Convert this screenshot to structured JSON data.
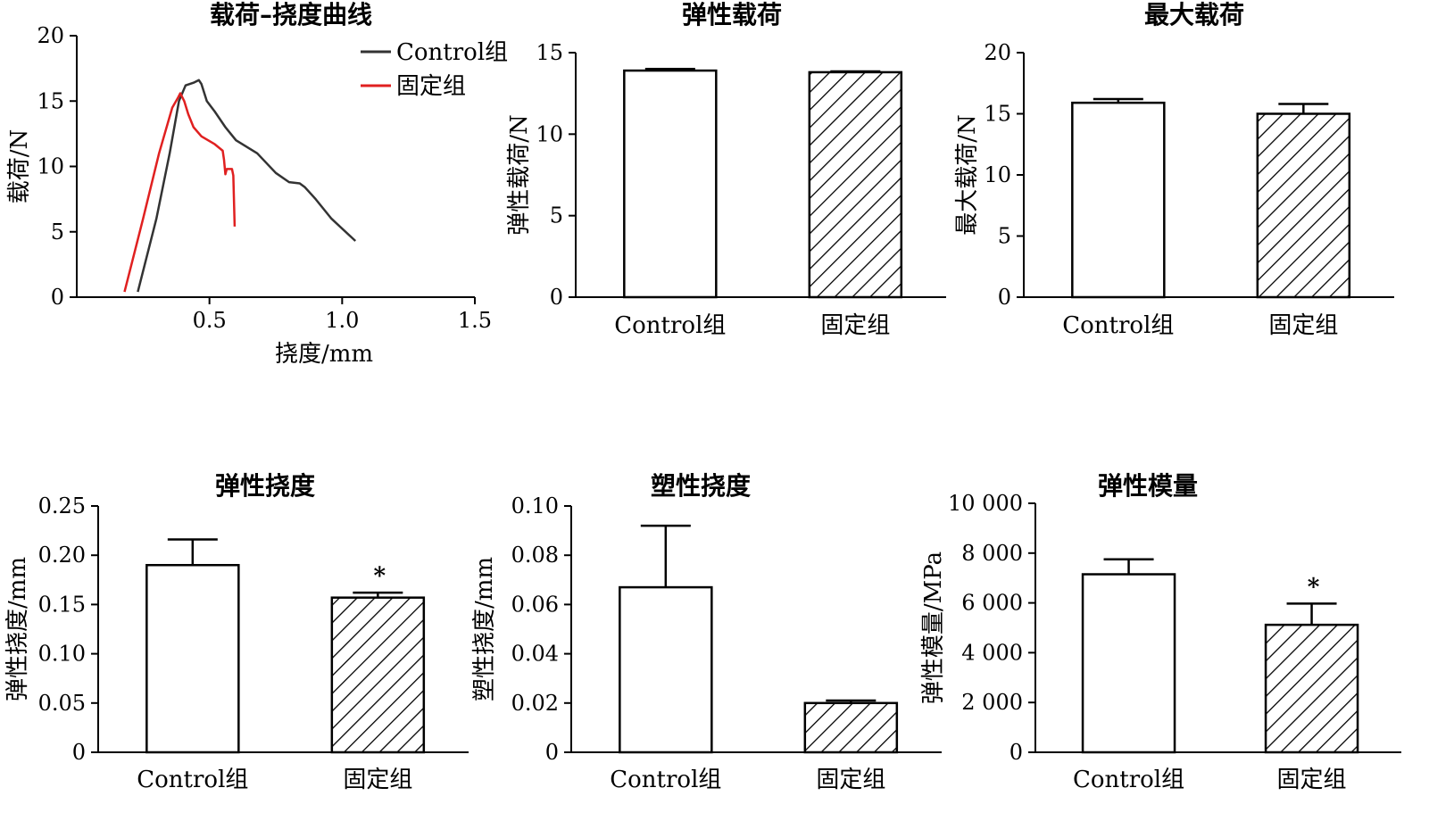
{
  "chart_data": [
    {
      "id": "curve",
      "type": "line",
      "title": "载荷–挠度曲线",
      "xlabel": "挠度/mm",
      "ylabel": "载荷/N",
      "xlim": [
        0,
        1.5
      ],
      "ylim": [
        0,
        20
      ],
      "xticks": [
        "0.5",
        "1.0",
        "1.5"
      ],
      "yticks": [
        "0",
        "5",
        "10",
        "15",
        "20"
      ],
      "legend_position": "top-right",
      "series": [
        {
          "name": "Control组",
          "color": "#333333",
          "points": [
            [
              0.23,
              0.4
            ],
            [
              0.3,
              6
            ],
            [
              0.35,
              11
            ],
            [
              0.385,
              15
            ],
            [
              0.41,
              16.2
            ],
            [
              0.44,
              16.4
            ],
            [
              0.46,
              16.6
            ],
            [
              0.47,
              16.3
            ],
            [
              0.49,
              15.0
            ],
            [
              0.52,
              14.2
            ],
            [
              0.56,
              13.0
            ],
            [
              0.6,
              12.0
            ],
            [
              0.68,
              11.0
            ],
            [
              0.75,
              9.5
            ],
            [
              0.8,
              8.8
            ],
            [
              0.84,
              8.7
            ],
            [
              0.86,
              8.4
            ],
            [
              0.9,
              7.5
            ],
            [
              0.96,
              6.0
            ],
            [
              1.05,
              4.3
            ]
          ]
        },
        {
          "name": "固定组",
          "color": "#e02020",
          "points": [
            [
              0.18,
              0.4
            ],
            [
              0.25,
              6
            ],
            [
              0.31,
              11
            ],
            [
              0.36,
              14.5
            ],
            [
              0.38,
              15.2
            ],
            [
              0.39,
              15.6
            ],
            [
              0.405,
              15.0
            ],
            [
              0.42,
              14.0
            ],
            [
              0.44,
              13.0
            ],
            [
              0.47,
              12.3
            ],
            [
              0.52,
              11.7
            ],
            [
              0.55,
              11.2
            ],
            [
              0.555,
              10.5
            ],
            [
              0.56,
              9.4
            ],
            [
              0.565,
              9.8
            ],
            [
              0.585,
              9.8
            ],
            [
              0.59,
              9.3
            ],
            [
              0.595,
              5.4
            ]
          ]
        }
      ]
    },
    {
      "id": "elastic_load",
      "type": "bar",
      "title": "弹性载荷",
      "ylabel": "弹性载荷/N",
      "categories": [
        "Control组",
        "固定组"
      ],
      "values": [
        13.9,
        13.8
      ],
      "errors": [
        0.1,
        0.05
      ],
      "ylim": [
        0,
        15
      ],
      "yticks": [
        "0",
        "5",
        "10",
        "15"
      ],
      "significance": [
        "",
        ""
      ]
    },
    {
      "id": "max_load",
      "type": "bar",
      "title": "最大载荷",
      "ylabel": "最大载荷/N",
      "categories": [
        "Control组",
        "固定组"
      ],
      "values": [
        15.9,
        15.0
      ],
      "errors": [
        0.3,
        0.8
      ],
      "ylim": [
        0,
        20
      ],
      "yticks": [
        "0",
        "5",
        "10",
        "15",
        "20"
      ],
      "significance": [
        "",
        ""
      ]
    },
    {
      "id": "elastic_deflection",
      "type": "bar",
      "title": "弹性挠度",
      "ylabel": "弹性挠度/mm",
      "categories": [
        "Control组",
        "固定组"
      ],
      "values": [
        0.19,
        0.157
      ],
      "errors": [
        0.026,
        0.005
      ],
      "ylim": [
        0,
        0.25
      ],
      "yticks": [
        "0",
        "0.05",
        "0.10",
        "0.15",
        "0.20",
        "0.25"
      ],
      "significance": [
        "",
        "*"
      ]
    },
    {
      "id": "plastic_deflection",
      "type": "bar",
      "title": "塑性挠度",
      "ylabel": "塑性挠度/mm",
      "categories": [
        "Control组",
        "固定组"
      ],
      "values": [
        0.067,
        0.02
      ],
      "errors": [
        0.025,
        0.001
      ],
      "ylim": [
        0,
        0.1
      ],
      "yticks": [
        "0",
        "0.02",
        "0.04",
        "0.06",
        "0.08",
        "0.10"
      ],
      "significance": [
        "",
        ""
      ]
    },
    {
      "id": "elastic_modulus",
      "type": "bar",
      "title": "弹性模量",
      "ylabel": "弹性模量/MPa",
      "categories": [
        "Control组",
        "固定组"
      ],
      "values": [
        7150,
        5120
      ],
      "errors": [
        600,
        850
      ],
      "ylim": [
        0,
        10000
      ],
      "yticks": [
        "0",
        "2 000",
        "4 000",
        "6 000",
        "8 000",
        "10 000"
      ],
      "significance": [
        "",
        "*"
      ]
    }
  ]
}
